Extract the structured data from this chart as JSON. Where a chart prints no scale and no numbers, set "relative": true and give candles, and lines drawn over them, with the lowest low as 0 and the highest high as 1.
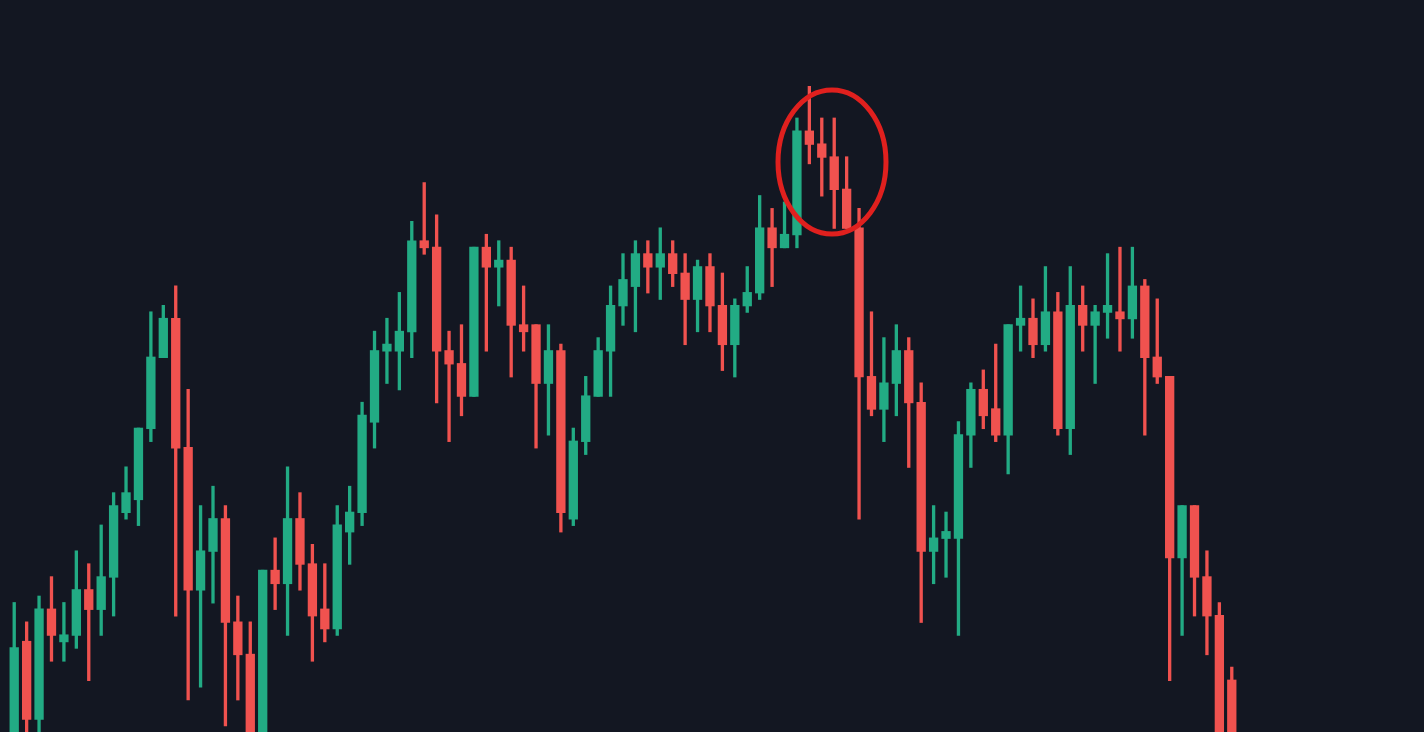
{
  "chart_data": {
    "type": "candlestick",
    "relative": true,
    "legend": false,
    "categories": [
      null,
      null,
      null,
      null,
      null,
      null,
      null,
      null,
      null,
      null,
      null,
      null,
      null,
      null,
      null,
      null,
      null,
      null,
      null,
      null,
      null,
      null,
      null,
      null,
      null,
      null,
      null,
      null,
      null,
      null,
      null,
      null,
      null,
      null,
      null,
      null,
      null,
      null,
      null,
      null,
      null,
      null,
      null,
      null,
      null,
      null,
      null,
      null,
      null,
      null,
      null,
      null,
      null,
      null,
      null,
      null,
      null,
      null,
      null,
      null,
      null,
      null,
      null,
      null,
      null,
      null,
      null,
      null,
      null,
      null,
      null,
      null,
      null,
      null,
      null,
      null,
      null,
      null,
      null,
      null,
      null,
      null,
      null,
      null,
      null,
      null,
      null,
      null,
      null,
      null,
      null,
      null,
      null,
      null,
      null,
      null,
      null,
      null,
      null
    ],
    "ohlc": [
      [
        0,
        0.2,
        0,
        0.13
      ],
      [
        0.14,
        0.17,
        0,
        0.02
      ],
      [
        0.02,
        0.21,
        0,
        0.19
      ],
      [
        0.19,
        0.24,
        0.11,
        0.15
      ],
      [
        0.14,
        0.2,
        0.11,
        0.15
      ],
      [
        0.15,
        0.28,
        0.13,
        0.22
      ],
      [
        0.22,
        0.26,
        0.08,
        0.19
      ],
      [
        0.19,
        0.32,
        0.15,
        0.24
      ],
      [
        0.24,
        0.37,
        0.18,
        0.35
      ],
      [
        0.34,
        0.41,
        0.33,
        0.37
      ],
      [
        0.36,
        0.47,
        0.32,
        0.47
      ],
      [
        0.47,
        0.65,
        0.45,
        0.58
      ],
      [
        0.58,
        0.66,
        0.58,
        0.64
      ],
      [
        0.64,
        0.69,
        0.18,
        0.44
      ],
      [
        0.44,
        0.53,
        0.05,
        0.22
      ],
      [
        0.22,
        0.35,
        0.07,
        0.28
      ],
      [
        0.28,
        0.38,
        0.2,
        0.33
      ],
      [
        0.33,
        0.35,
        0.01,
        0.17
      ],
      [
        0.17,
        0.21,
        0.05,
        0.12
      ],
      [
        0.12,
        0.17,
        0,
        0
      ],
      [
        0,
        0.25,
        0,
        0.25
      ],
      [
        0.25,
        0.3,
        0.19,
        0.23
      ],
      [
        0.23,
        0.41,
        0.15,
        0.33
      ],
      [
        0.33,
        0.37,
        0.22,
        0.26
      ],
      [
        0.26,
        0.29,
        0.11,
        0.18
      ],
      [
        0.19,
        0.26,
        0.14,
        0.16
      ],
      [
        0.16,
        0.35,
        0.15,
        0.32
      ],
      [
        0.31,
        0.38,
        0.26,
        0.34
      ],
      [
        0.34,
        0.51,
        0.32,
        0.49
      ],
      [
        0.48,
        0.62,
        0.44,
        0.59
      ],
      [
        0.59,
        0.64,
        0.54,
        0.6
      ],
      [
        0.59,
        0.68,
        0.53,
        0.62
      ],
      [
        0.62,
        0.79,
        0.58,
        0.76
      ],
      [
        0.76,
        0.85,
        0.74,
        0.75
      ],
      [
        0.75,
        0.8,
        0.51,
        0.59
      ],
      [
        0.59,
        0.62,
        0.45,
        0.57
      ],
      [
        0.57,
        0.63,
        0.49,
        0.52
      ],
      [
        0.52,
        0.75,
        0.52,
        0.75
      ],
      [
        0.75,
        0.77,
        0.59,
        0.72
      ],
      [
        0.72,
        0.76,
        0.66,
        0.73
      ],
      [
        0.73,
        0.75,
        0.55,
        0.63
      ],
      [
        0.63,
        0.69,
        0.59,
        0.62
      ],
      [
        0.63,
        0.63,
        0.44,
        0.54
      ],
      [
        0.54,
        0.63,
        0.46,
        0.59
      ],
      [
        0.59,
        0.6,
        0.31,
        0.34
      ],
      [
        0.33,
        0.47,
        0.32,
        0.45
      ],
      [
        0.45,
        0.55,
        0.43,
        0.52
      ],
      [
        0.52,
        0.61,
        0.52,
        0.59
      ],
      [
        0.59,
        0.69,
        0.52,
        0.66
      ],
      [
        0.66,
        0.74,
        0.63,
        0.7
      ],
      [
        0.69,
        0.76,
        0.62,
        0.74
      ],
      [
        0.74,
        0.76,
        0.68,
        0.72
      ],
      [
        0.72,
        0.78,
        0.67,
        0.74
      ],
      [
        0.74,
        0.76,
        0.69,
        0.71
      ],
      [
        0.71,
        0.74,
        0.6,
        0.67
      ],
      [
        0.67,
        0.73,
        0.62,
        0.72
      ],
      [
        0.72,
        0.74,
        0.62,
        0.66
      ],
      [
        0.66,
        0.71,
        0.56,
        0.6
      ],
      [
        0.6,
        0.67,
        0.55,
        0.66
      ],
      [
        0.66,
        0.72,
        0.65,
        0.68
      ],
      [
        0.68,
        0.83,
        0.67,
        0.78
      ],
      [
        0.78,
        0.81,
        0.69,
        0.75
      ],
      [
        0.75,
        0.82,
        0.75,
        0.77
      ],
      [
        0.77,
        0.95,
        0.75,
        0.93
      ],
      [
        0.93,
        1,
        0.88,
        0.91
      ],
      [
        0.91,
        0.95,
        0.83,
        0.89
      ],
      [
        0.89,
        0.95,
        0.78,
        0.84
      ],
      [
        0.84,
        0.89,
        0.78,
        0.78
      ],
      [
        0.78,
        0.81,
        0.33,
        0.55
      ],
      [
        0.55,
        0.65,
        0.49,
        0.5
      ],
      [
        0.5,
        0.61,
        0.45,
        0.54
      ],
      [
        0.54,
        0.63,
        0.49,
        0.59
      ],
      [
        0.59,
        0.61,
        0.41,
        0.51
      ],
      [
        0.51,
        0.54,
        0.17,
        0.28
      ],
      [
        0.28,
        0.35,
        0.23,
        0.3
      ],
      [
        0.3,
        0.34,
        0.24,
        0.31
      ],
      [
        0.3,
        0.48,
        0.15,
        0.46
      ],
      [
        0.46,
        0.54,
        0.41,
        0.53
      ],
      [
        0.53,
        0.56,
        0.47,
        0.49
      ],
      [
        0.5,
        0.6,
        0.45,
        0.46
      ],
      [
        0.46,
        0.63,
        0.4,
        0.63
      ],
      [
        0.63,
        0.69,
        0.59,
        0.64
      ],
      [
        0.64,
        0.67,
        0.58,
        0.6
      ],
      [
        0.6,
        0.72,
        0.59,
        0.65
      ],
      [
        0.65,
        0.68,
        0.46,
        0.47
      ],
      [
        0.47,
        0.72,
        0.43,
        0.66
      ],
      [
        0.66,
        0.69,
        0.59,
        0.63
      ],
      [
        0.63,
        0.66,
        0.54,
        0.65
      ],
      [
        0.65,
        0.74,
        0.61,
        0.66
      ],
      [
        0.65,
        0.75,
        0.59,
        0.64
      ],
      [
        0.64,
        0.75,
        0.61,
        0.69
      ],
      [
        0.69,
        0.7,
        0.46,
        0.58
      ],
      [
        0.58,
        0.67,
        0.54,
        0.55
      ],
      [
        0.55,
        0.55,
        0.08,
        0.27
      ],
      [
        0.27,
        0.35,
        0.15,
        0.35
      ],
      [
        0.35,
        0.35,
        0.18,
        0.24
      ],
      [
        0.24,
        0.28,
        0.12,
        0.18
      ],
      [
        0.18,
        0.2,
        0,
        0
      ],
      [
        0.08,
        0.1,
        0,
        0
      ]
    ],
    "colors": [
      "#22ab84",
      "#f0524f",
      "#22ab84",
      "#f0524f",
      "#22ab84",
      "#22ab84",
      "#f0524f",
      "#22ab84",
      "#22ab84",
      "#22ab84",
      "#22ab84",
      "#22ab84",
      "#22ab84",
      "#f0524f",
      "#f0524f",
      "#22ab84",
      "#22ab84",
      "#f0524f",
      "#f0524f",
      "#f0524f",
      "#22ab84",
      "#f0524f",
      "#22ab84",
      "#f0524f",
      "#f0524f",
      "#f0524f",
      "#22ab84",
      "#22ab84",
      "#22ab84",
      "#22ab84",
      "#22ab84",
      "#22ab84",
      "#22ab84",
      "#f0524f",
      "#f0524f",
      "#f0524f",
      "#f0524f",
      "#22ab84",
      "#f0524f",
      "#22ab84",
      "#f0524f",
      "#f0524f",
      "#f0524f",
      "#22ab84",
      "#f0524f",
      "#22ab84",
      "#22ab84",
      "#22ab84",
      "#22ab84",
      "#22ab84",
      "#22ab84",
      "#f0524f",
      "#22ab84",
      "#f0524f",
      "#f0524f",
      "#22ab84",
      "#f0524f",
      "#f0524f",
      "#22ab84",
      "#22ab84",
      "#22ab84",
      "#f0524f",
      "#22ab84",
      "#22ab84",
      "#f0524f",
      "#f0524f",
      "#f0524f",
      "#f0524f",
      "#f0524f",
      "#f0524f",
      "#22ab84",
      "#22ab84",
      "#f0524f",
      "#f0524f",
      "#22ab84",
      "#22ab84",
      "#22ab84",
      "#22ab84",
      "#f0524f",
      "#f0524f",
      "#22ab84",
      "#22ab84",
      "#f0524f",
      "#22ab84",
      "#f0524f",
      "#22ab84",
      "#f0524f",
      "#22ab84",
      "#22ab84",
      "#f0524f",
      "#22ab84",
      "#f0524f",
      "#f0524f",
      "#f0524f",
      "#22ab84",
      "#f0524f",
      "#f0524f",
      "#f0524f",
      "#f0524f"
    ]
  }
}
